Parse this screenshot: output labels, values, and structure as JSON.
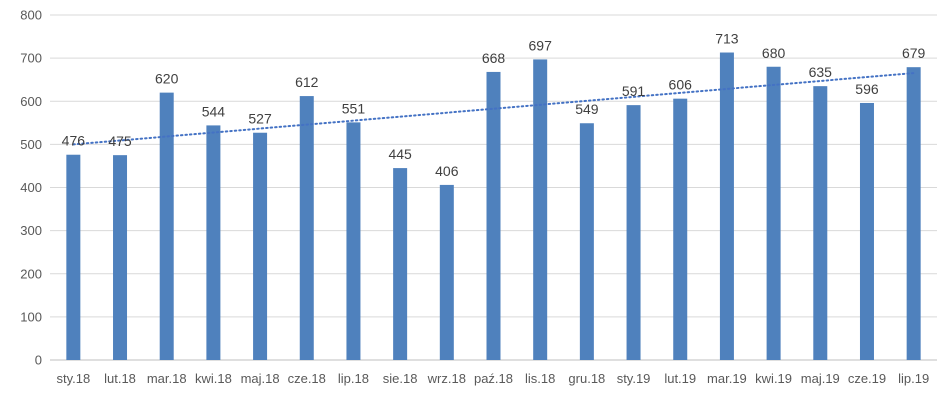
{
  "chart_data": {
    "type": "bar",
    "title": "",
    "xlabel": "",
    "ylabel": "",
    "categories": [
      "sty.18",
      "lut.18",
      "mar.18",
      "kwi.18",
      "maj.18",
      "cze.18",
      "lip.18",
      "sie.18",
      "wrz.18",
      "paź.18",
      "lis.18",
      "gru.18",
      "sty.19",
      "lut.19",
      "mar.19",
      "kwi.19",
      "maj.19",
      "cze.19",
      "lip.19"
    ],
    "values": [
      476,
      475,
      620,
      544,
      527,
      612,
      551,
      445,
      406,
      668,
      697,
      549,
      591,
      606,
      713,
      680,
      635,
      596,
      679
    ],
    "data_labels": [
      "476",
      "475",
      "620",
      "544",
      "527",
      "612",
      "551",
      "445",
      "406",
      "668",
      "697",
      "549",
      "591",
      "606",
      "713",
      "680",
      "635",
      "596",
      "679"
    ],
    "ylim": [
      0,
      800
    ],
    "yticks": [
      "0",
      "100",
      "200",
      "300",
      "400",
      "500",
      "600",
      "700",
      "800"
    ],
    "grid": true,
    "legend": "none",
    "trendline": {
      "type": "linear",
      "style": "dotted"
    },
    "colors": {
      "bar": "#4F81BD",
      "trendline": "#4472C4",
      "grid": "#D9D9D9",
      "axis": "#BFBFBF"
    }
  }
}
